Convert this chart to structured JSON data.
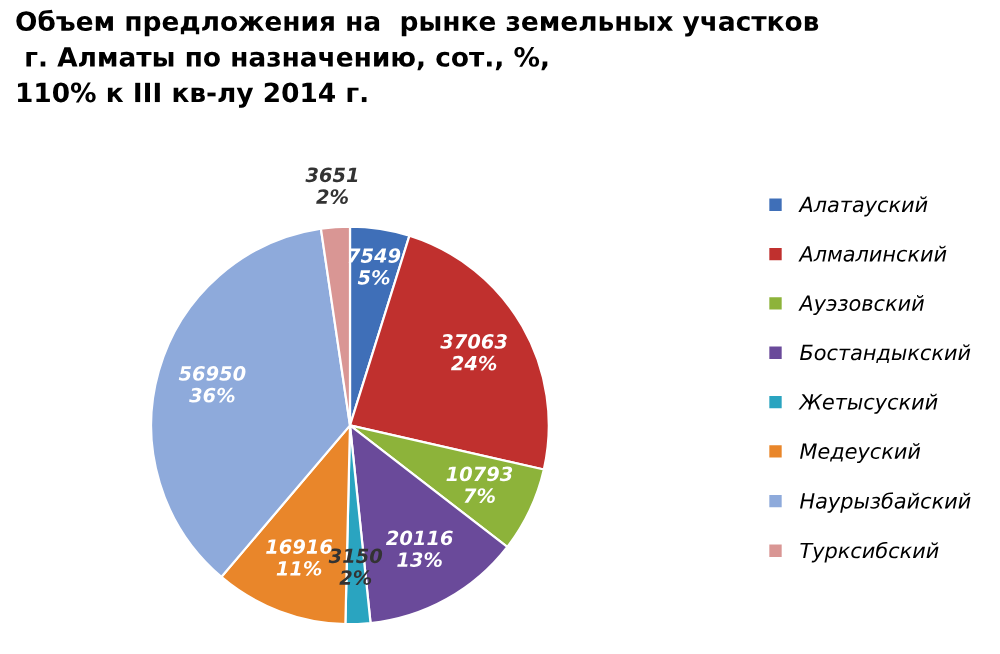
{
  "chart_data": {
    "type": "pie",
    "title": "Объем предложения на  рынке земельных участков\n г. Алматы по назначению, сот., %,\n110% к III кв-лу 2014 г.",
    "categories": [
      "Алатауский",
      "Алмалинский",
      "Ауэзовский",
      "Бостандыкский",
      "Жетысуский",
      "Медеуский",
      "Наурызбайский",
      "Турксибский"
    ],
    "values": [
      7549,
      37063,
      10793,
      20116,
      3150,
      16916,
      56950,
      3651
    ],
    "value_labels": [
      "7549\n5%",
      "37063\n24%",
      "10793\n7%",
      "20116\n13%",
      "3150\n2%",
      "16916\n11%",
      "56950\n36%",
      "3651\n2%"
    ],
    "colors": [
      "#3f6fb8",
      "#c0302e",
      "#8db33a",
      "#6a4a9a",
      "#2aa4c0",
      "#e9862a",
      "#8eaadb",
      "#d99694"
    ],
    "legend": "right"
  }
}
